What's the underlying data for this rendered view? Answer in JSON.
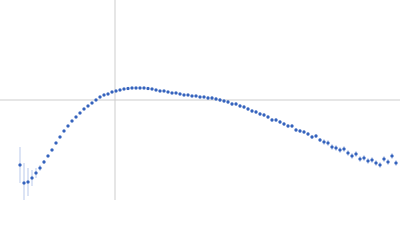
{
  "chart_data": {
    "type": "scatter",
    "xlim": [
      0,
      400
    ],
    "ylim": [
      0,
      200
    ],
    "reference_lines": {
      "x": 115,
      "y": 100,
      "color": "#cccccc"
    },
    "series": [
      {
        "color": "#3563bd",
        "error_color": "#a9bde6",
        "x": [
          20,
          24,
          28,
          32,
          36,
          40,
          44,
          48,
          52,
          56,
          60,
          64,
          68,
          72,
          76,
          80,
          84,
          88,
          92,
          96,
          100,
          104,
          108,
          112,
          116,
          120,
          124,
          128,
          132,
          136,
          140,
          144,
          148,
          152,
          156,
          160,
          164,
          168,
          172,
          176,
          180,
          184,
          188,
          192,
          196,
          200,
          204,
          208,
          212,
          216,
          220,
          224,
          228,
          232,
          236,
          240,
          244,
          248,
          252,
          256,
          260,
          264,
          268,
          272,
          276,
          280,
          284,
          288,
          292,
          296,
          300,
          304,
          308,
          312,
          316,
          320,
          324,
          328,
          332,
          336,
          340,
          344,
          348,
          352,
          356,
          360,
          364,
          368,
          372,
          376,
          380,
          384,
          388,
          392,
          396
        ],
        "values": [
          35,
          17,
          18,
          22,
          27,
          32,
          38,
          44,
          50,
          57,
          63,
          69,
          74,
          79,
          83,
          87,
          91,
          94,
          97,
          100,
          103,
          105,
          106,
          108,
          109,
          110,
          111,
          111.5,
          112,
          112,
          112,
          112,
          111.5,
          111,
          110,
          109,
          109,
          108,
          107,
          107,
          106,
          105,
          105,
          104,
          104,
          103,
          103,
          102,
          102,
          101,
          100,
          99,
          98,
          96,
          96,
          94,
          93,
          91,
          89,
          88,
          86,
          85,
          83,
          80,
          80,
          78,
          76,
          74,
          74,
          70,
          69,
          68,
          66,
          63,
          64,
          60,
          58,
          57,
          53,
          52,
          50,
          51,
          47,
          44,
          46,
          41,
          42,
          39,
          40,
          37,
          35,
          41,
          38,
          44,
          37
        ],
        "errors": [
          18,
          20,
          14,
          8,
          5,
          3,
          2,
          1,
          1,
          1,
          1,
          1,
          1,
          1,
          1,
          1,
          1,
          1,
          1,
          1,
          1,
          1,
          1,
          1,
          1,
          1,
          1,
          1,
          1,
          1,
          1,
          1,
          1,
          1,
          1,
          1,
          1,
          1,
          1,
          1,
          1,
          1,
          1,
          1,
          1,
          1,
          1,
          2,
          2,
          2,
          2,
          2,
          2,
          2,
          2,
          2,
          2,
          2,
          2,
          2,
          2,
          2,
          2,
          2,
          2,
          2,
          2,
          2,
          2,
          2,
          2,
          2,
          2,
          2,
          2,
          2,
          3,
          3,
          3,
          3,
          3,
          3,
          3,
          3,
          3,
          3,
          3,
          3,
          3,
          3,
          3,
          3,
          3,
          3,
          3
        ]
      }
    ]
  }
}
